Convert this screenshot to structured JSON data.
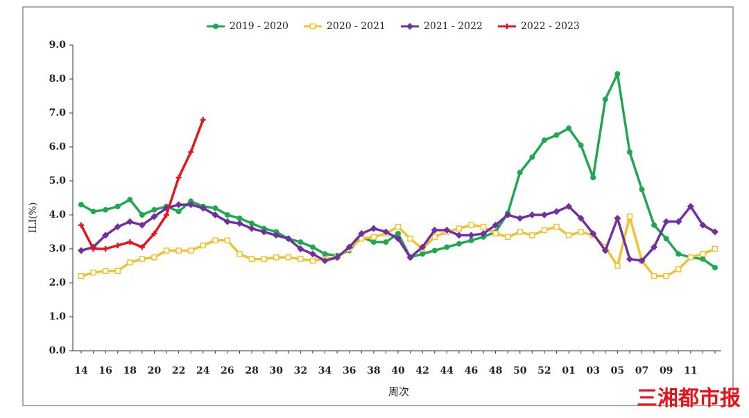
{
  "chart_data": {
    "type": "line",
    "x_label": "周次",
    "y_label": "ILI(%)",
    "watermark": "三湘都市报",
    "categories": [
      "14",
      null,
      "16",
      null,
      "18",
      null,
      "20",
      null,
      "22",
      null,
      "24",
      null,
      "26",
      null,
      "28",
      null,
      "30",
      null,
      "32",
      null,
      "34",
      null,
      "36",
      null,
      "38",
      null,
      "40",
      null,
      "42",
      null,
      "44",
      null,
      "46",
      null,
      "48",
      null,
      "50",
      null,
      "52",
      null,
      "01",
      null,
      "03",
      null,
      "05",
      null,
      "07",
      null,
      "09",
      null,
      "11",
      null,
      null
    ],
    "ylim": [
      0,
      9
    ],
    "yticks": [
      {
        "value": 0,
        "label": "0.0"
      },
      {
        "value": 1,
        "label": "1.0"
      },
      {
        "value": 2,
        "label": "2.0"
      },
      {
        "value": 3,
        "label": "3.0"
      },
      {
        "value": 4,
        "label": "4.0"
      },
      {
        "value": 5,
        "label": "5.0"
      },
      {
        "value": 6,
        "label": "6.0"
      },
      {
        "value": 7,
        "label": "7.0"
      },
      {
        "value": 8,
        "label": "8.0"
      },
      {
        "value": 9,
        "label": "9.0"
      }
    ],
    "grid": false,
    "legend": "top",
    "series": [
      {
        "name": "2019 - 2020",
        "color": "#1fa84f",
        "marker": "circle",
        "values": [
          4.3,
          4.1,
          4.15,
          4.25,
          4.45,
          4.0,
          4.15,
          4.25,
          4.1,
          4.4,
          4.25,
          4.2,
          4.0,
          3.9,
          3.75,
          3.6,
          3.5,
          3.3,
          3.2,
          3.05,
          2.85,
          2.8,
          2.95,
          3.35,
          3.2,
          3.2,
          3.45,
          2.75,
          2.85,
          2.95,
          3.05,
          3.15,
          3.25,
          3.35,
          3.5,
          4.05,
          5.25,
          5.7,
          6.2,
          6.35,
          6.55,
          6.05,
          5.1,
          7.4,
          8.15,
          5.85,
          4.75,
          3.7,
          3.3,
          2.85,
          2.75,
          2.7,
          2.45
        ]
      },
      {
        "name": "2020 - 2021",
        "color": "#f2c12e",
        "marker": "square",
        "values": [
          2.2,
          2.3,
          2.35,
          2.35,
          2.6,
          2.7,
          2.75,
          2.95,
          2.95,
          2.95,
          3.1,
          3.25,
          3.25,
          2.85,
          2.7,
          2.7,
          2.75,
          2.75,
          2.7,
          2.65,
          2.7,
          2.75,
          3.0,
          3.3,
          3.35,
          3.45,
          3.65,
          3.3,
          3.0,
          3.35,
          3.5,
          3.6,
          3.7,
          3.65,
          3.45,
          3.35,
          3.5,
          3.4,
          3.55,
          3.65,
          3.4,
          3.5,
          3.4,
          3.05,
          2.5,
          3.95,
          2.65,
          2.2,
          2.2,
          2.4,
          2.75,
          2.85,
          3.0
        ]
      },
      {
        "name": "2021 - 2022",
        "color": "#7030a0",
        "marker": "diamond",
        "values": [
          2.95,
          3.05,
          3.4,
          3.65,
          3.8,
          3.7,
          3.95,
          4.2,
          4.3,
          4.3,
          4.2,
          4.0,
          3.8,
          3.75,
          3.6,
          3.5,
          3.4,
          3.3,
          3.0,
          2.85,
          2.65,
          2.75,
          3.05,
          3.45,
          3.6,
          3.5,
          3.3,
          2.75,
          3.05,
          3.55,
          3.55,
          3.4,
          3.4,
          3.45,
          3.7,
          4.0,
          3.9,
          4.0,
          4.0,
          4.1,
          4.25,
          3.9,
          3.45,
          2.95,
          3.9,
          2.7,
          2.65,
          3.05,
          3.8,
          3.8,
          4.25,
          3.7,
          3.5
        ]
      },
      {
        "name": "2022 - 2023",
        "color": "#e8141c",
        "marker": "star",
        "values": [
          3.7,
          3.0,
          3.0,
          3.1,
          3.2,
          3.05,
          3.45,
          4.0,
          5.1,
          5.85,
          6.8,
          null,
          null,
          null,
          null,
          null,
          null,
          null,
          null,
          null,
          null,
          null,
          null,
          null,
          null,
          null,
          null,
          null,
          null,
          null,
          null,
          null,
          null,
          null,
          null,
          null,
          null,
          null,
          null,
          null,
          null,
          null,
          null,
          null,
          null,
          null,
          null,
          null,
          null,
          null,
          null,
          null,
          null
        ]
      }
    ]
  }
}
